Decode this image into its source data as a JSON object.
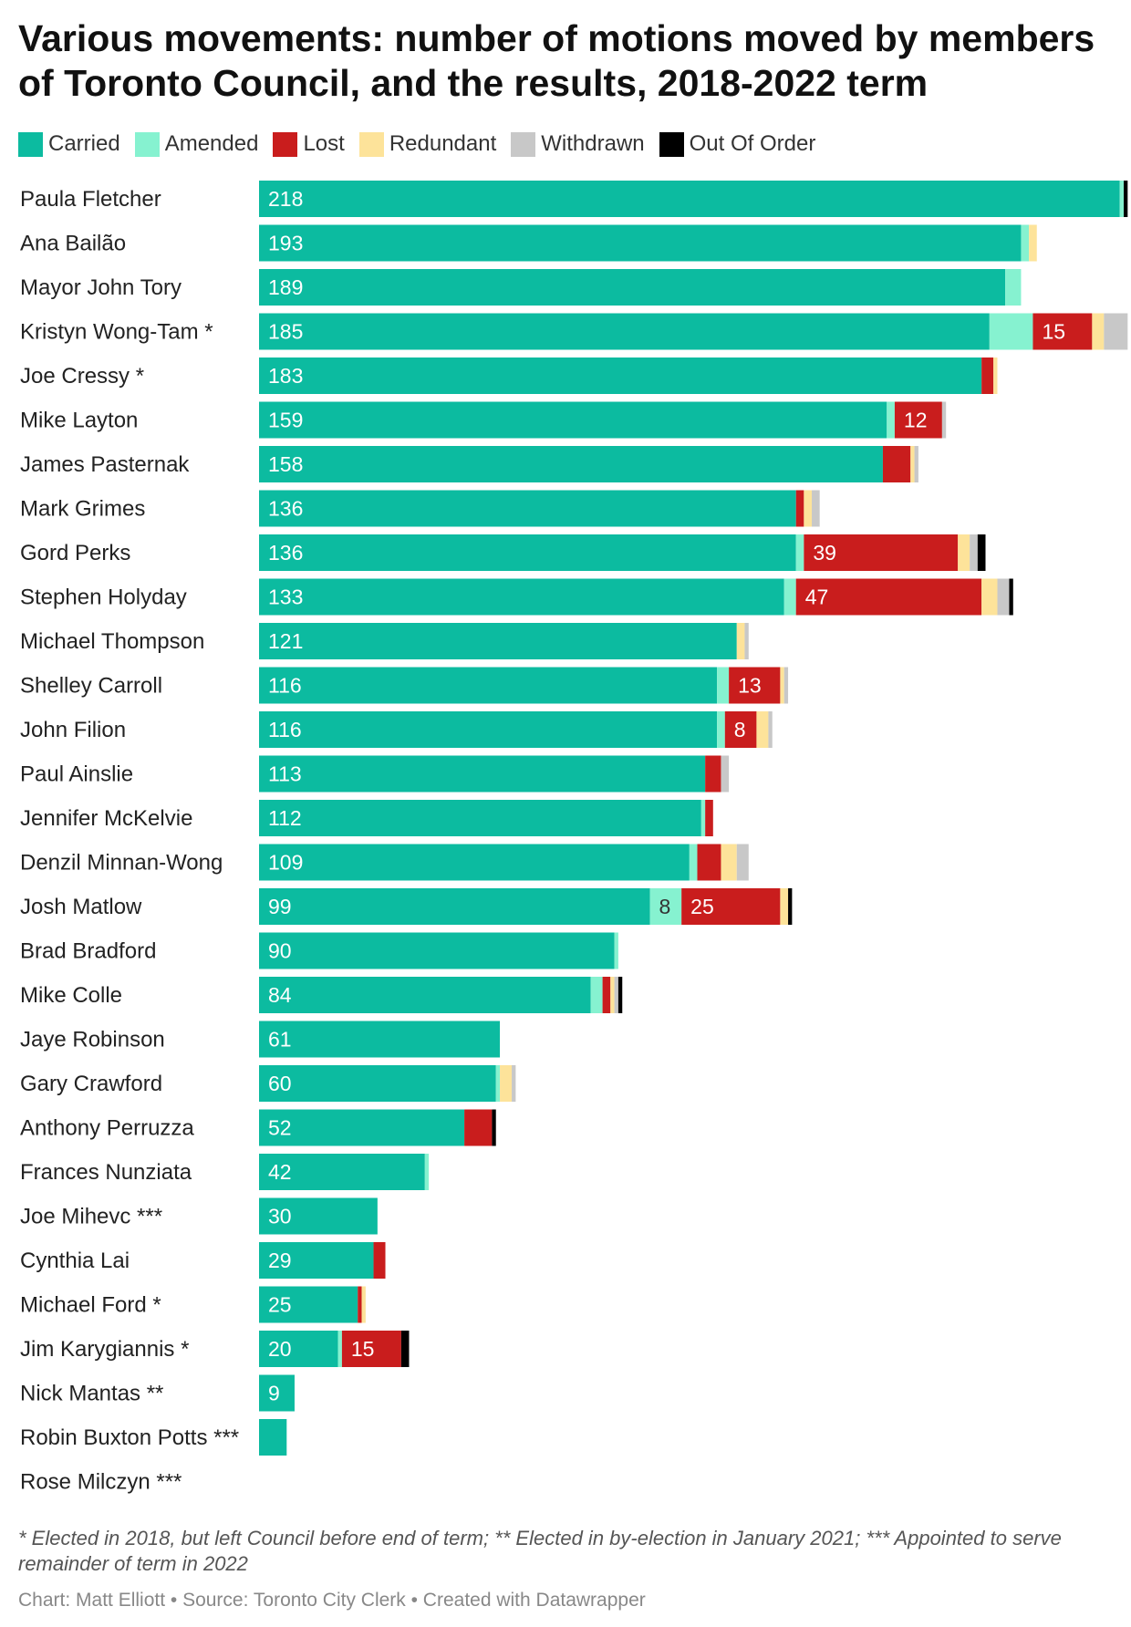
{
  "chart_data": {
    "type": "bar",
    "orientation": "horizontal",
    "stacked": true,
    "title": "Various movements: number of motions moved by members of Toronto Council, and the results, 2018-2022 term",
    "footnote": "* Elected in 2018, but left Council before end of term; ** Elected in by-election in January 2021; *** Appointed to serve remainder of term in 2022",
    "source": "Chart: Matt Elliott • Source: Toronto City Clerk • Created with Datawrapper",
    "legend_position": "top",
    "xlim": [
      0,
      219
    ],
    "categories": [
      "Paula Fletcher",
      "Ana Bailão",
      "Mayor John Tory",
      "Kristyn Wong-Tam *",
      "Joe Cressy *",
      "Mike Layton",
      "James Pasternak",
      "Mark Grimes",
      "Gord Perks",
      "Stephen Holyday",
      "Michael Thompson",
      "Shelley Carroll",
      "John Filion",
      "Paul Ainslie",
      "Jennifer McKelvie",
      "Denzil Minnan-Wong",
      "Josh Matlow",
      "Brad Bradford",
      "Mike Colle",
      "Jaye Robinson",
      "Gary Crawford",
      "Anthony Perruzza",
      "Frances Nunziata",
      "Joe Mihevc ***",
      "Cynthia Lai",
      "Michael Ford *",
      "Jim Karygiannis *",
      "Nick Mantas **",
      "Robin Buxton Potts ***",
      "Rose Milczyn ***"
    ],
    "series": [
      {
        "name": "Carried",
        "color": "#0cbba0",
        "label_color": "#ffffff",
        "values": [
          218,
          193,
          189,
          185,
          183,
          159,
          158,
          136,
          136,
          133,
          121,
          116,
          116,
          113,
          112,
          109,
          99,
          90,
          84,
          61,
          60,
          52,
          42,
          30,
          29,
          25,
          20,
          9,
          7,
          0
        ],
        "labels": [
          "218",
          "193",
          "189",
          "185",
          "183",
          "159",
          "158",
          "136",
          "136",
          "133",
          "121",
          "116",
          "116",
          "113",
          "112",
          "109",
          "99",
          "90",
          "84",
          "61",
          "60",
          "52",
          "42",
          "30",
          "29",
          "25",
          "20",
          "9",
          "",
          ""
        ]
      },
      {
        "name": "Amended",
        "color": "#86f2d0",
        "label_color": "#333333",
        "values": [
          1,
          2,
          4,
          11,
          0,
          2,
          0,
          0,
          2,
          3,
          0,
          3,
          2,
          0,
          1,
          2,
          8,
          1,
          3,
          0,
          1,
          0,
          1,
          0,
          0,
          0,
          1,
          0,
          0,
          0
        ],
        "labels": [
          "",
          "",
          "",
          "",
          "",
          "",
          "",
          "",
          "",
          "",
          "",
          "",
          "",
          "",
          "",
          "",
          "8",
          "",
          "",
          "",
          "",
          "",
          "",
          "",
          "",
          "",
          "",
          "",
          "",
          ""
        ]
      },
      {
        "name": "Lost",
        "color": "#c91d1d",
        "label_color": "#ffffff",
        "values": [
          0,
          0,
          0,
          15,
          3,
          12,
          7,
          2,
          39,
          47,
          0,
          13,
          8,
          4,
          2,
          6,
          25,
          0,
          2,
          0,
          0,
          7,
          0,
          0,
          3,
          1,
          15,
          0,
          0,
          0
        ],
        "labels": [
          "",
          "",
          "",
          "15",
          "",
          "12",
          "",
          "",
          "39",
          "47",
          "",
          "13",
          "8",
          "",
          "",
          "",
          "25",
          "",
          "",
          "",
          "",
          "",
          "",
          "",
          "",
          "",
          "15",
          "",
          "",
          ""
        ]
      },
      {
        "name": "Redundant",
        "color": "#fde39a",
        "label_color": "#333333",
        "values": [
          0,
          2,
          0,
          3,
          1,
          0,
          1,
          2,
          3,
          4,
          2,
          1,
          3,
          0,
          0,
          4,
          2,
          0,
          1,
          0,
          3,
          0,
          0,
          0,
          0,
          1,
          0,
          0,
          0,
          0
        ],
        "labels": [
          "",
          "",
          "",
          "",
          "",
          "",
          "",
          "",
          "",
          "",
          "",
          "",
          "",
          "",
          "",
          "",
          "",
          "",
          "",
          "",
          "",
          "",
          "",
          "",
          "",
          "",
          "",
          "",
          "",
          ""
        ]
      },
      {
        "name": "Withdrawn",
        "color": "#c8c8c8",
        "label_color": "#333333",
        "values": [
          0,
          0,
          0,
          6,
          0,
          1,
          1,
          2,
          2,
          3,
          1,
          1,
          1,
          2,
          0,
          3,
          0,
          0,
          1,
          0,
          1,
          0,
          0,
          0,
          0,
          0,
          0,
          0,
          0,
          0
        ],
        "labels": [
          "",
          "",
          "",
          "",
          "",
          "",
          "",
          "",
          "",
          "",
          "",
          "",
          "",
          "",
          "",
          "",
          "",
          "",
          "",
          "",
          "",
          "",
          "",
          "",
          "",
          "",
          "",
          "",
          "",
          ""
        ]
      },
      {
        "name": "Out Of Order",
        "color": "#000000",
        "label_color": "#ffffff",
        "values": [
          1,
          0,
          0,
          0,
          0,
          0,
          0,
          0,
          2,
          1,
          0,
          0,
          0,
          0,
          0,
          0,
          1,
          0,
          1,
          0,
          0,
          1,
          0,
          0,
          0,
          0,
          2,
          0,
          0,
          0
        ],
        "labels": [
          "",
          "",
          "",
          "",
          "",
          "",
          "",
          "",
          "",
          "",
          "",
          "",
          "",
          "",
          "",
          "",
          "",
          "",
          "",
          "",
          "",
          "",
          "",
          "",
          "",
          "",
          "",
          "",
          "",
          ""
        ]
      }
    ]
  }
}
